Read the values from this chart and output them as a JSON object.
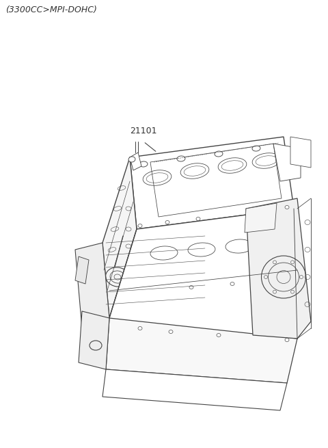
{
  "title": "(3300CC>MPI-DOHC)",
  "title_fontsize": 9,
  "title_color": "#333333",
  "background_color": "#ffffff",
  "part_number": "21101",
  "part_number_fontsize": 9,
  "part_number_color": "#333333",
  "line_color": "#444444",
  "line_width": 0.8,
  "fig_width": 4.8,
  "fig_height": 6.55,
  "dpi": 100
}
